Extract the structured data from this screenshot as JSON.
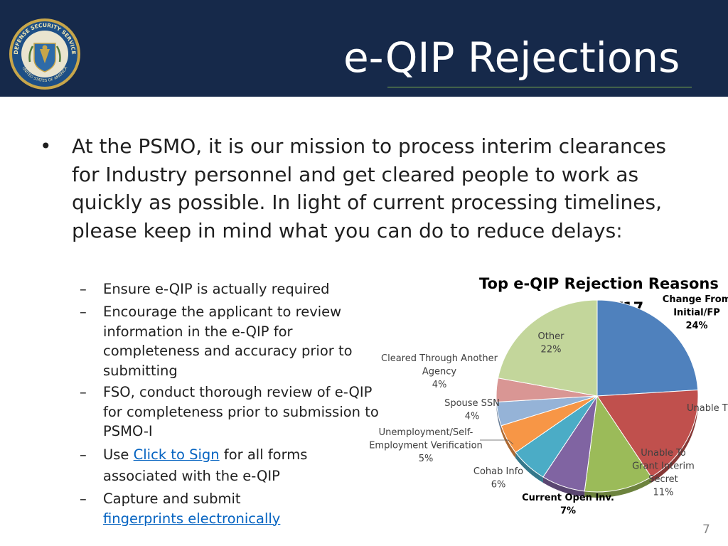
{
  "header": {
    "title": "e-QIP Rejections",
    "seal_text_top": "DEFENSE SECURITY SERVICE",
    "seal_text_bottom": "UNITED STATES OF AMERICA",
    "background_color": "#16294a",
    "accent_line_color": "#7fae4a"
  },
  "bullets": {
    "main": "At the PSMO, it is our mission to process interim clearances for Industry personnel and get cleared people to work as quickly as possible. In light of current processing timelines, please keep in mind what you can do to reduce delays:",
    "sub": [
      {
        "text": "Ensure e-QIP is actually required"
      },
      {
        "text": "Encourage the applicant to review information in the e-QIP for completeness and accuracy prior to submitting"
      },
      {
        "text": "FSO, conduct thorough review of e-QIP for completeness prior to submission to PSMO-I"
      },
      {
        "prefix": "Use ",
        "link": "Click to Sign",
        "suffix": " for all forms associated with the e-QIP"
      },
      {
        "prefix": "Capture and submit ",
        "link": "fingerprints electronically",
        "suffix": ""
      }
    ],
    "link_color": "#0563c1"
  },
  "chart_data": {
    "type": "pie",
    "title": "Top e-QIP Rejection Reasons",
    "subtitle": "Q1 FY17",
    "slices": [
      {
        "label": "Change From Initial/FP",
        "value": 24,
        "display": "24%",
        "color": "#4f81bd",
        "bold": true
      },
      {
        "label": "Unable T",
        "value": 17,
        "display": "",
        "color": "#c0504d",
        "bold": false
      },
      {
        "label": "Unable To Grant Interim Secret",
        "value": 11,
        "display": "11%",
        "color": "#9bbb59",
        "bold": false
      },
      {
        "label": "Current Open Inv.",
        "value": 7,
        "display": "7%",
        "color": "#8064a2",
        "bold": true
      },
      {
        "label": "Cohab Info",
        "value": 6,
        "display": "6%",
        "color": "#4bacc6",
        "bold": false
      },
      {
        "label": "Unemployment/Self-Employment Verification",
        "value": 5,
        "display": "5%",
        "color": "#f79646",
        "bold": false
      },
      {
        "label": "Spouse SSN",
        "value": 4,
        "display": "4%",
        "color": "#95b3d7",
        "bold": false
      },
      {
        "label": "Cleared Through Another Agency",
        "value": 4,
        "display": "4%",
        "color": "#d99694",
        "bold": false
      },
      {
        "label": "Other",
        "value": 22,
        "display": "22%",
        "color": "#c3d69b",
        "bold": false
      }
    ]
  },
  "page_number": "7"
}
